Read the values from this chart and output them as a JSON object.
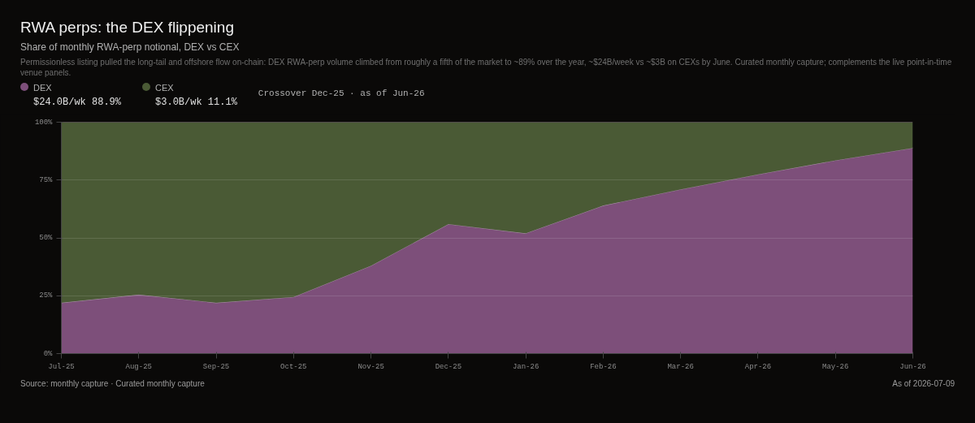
{
  "chart_data": {
    "type": "area",
    "stacked": true,
    "title": "RWA perps: the DEX flippening",
    "subtitle": "Share of monthly RWA-perp notional, DEX vs CEX",
    "categories": [
      "Jul-25",
      "Aug-25",
      "Sep-25",
      "Oct-25",
      "Nov-25",
      "Dec-25",
      "Jan-26",
      "Feb-26",
      "Mar-26",
      "Apr-26",
      "May-26",
      "Jun-26"
    ],
    "series": [
      {
        "name": "DEX",
        "color": "#7d4f7a",
        "values": [
          22,
          25.5,
          22,
          24.5,
          38,
          56,
          52,
          64,
          71,
          77.5,
          83.5,
          88.9
        ]
      },
      {
        "name": "CEX",
        "color": "#4a5a35",
        "values": [
          78,
          74.5,
          78,
          75.5,
          62,
          44,
          48,
          36,
          29,
          22.5,
          16.5,
          11.1
        ]
      }
    ],
    "ylim": [
      0,
      100
    ],
    "yticks": [
      {
        "value": 0,
        "label": "0%"
      },
      {
        "value": 25,
        "label": "25%"
      },
      {
        "value": 50,
        "label": "50%"
      },
      {
        "value": 75,
        "label": "75%"
      },
      {
        "value": 100,
        "label": "100%"
      }
    ],
    "grid": "y",
    "legend": "top left",
    "annotations": [
      "Permissionless listing pulled the long-tail and offshore flow on-chain: DEX RWA-perp volume climbed from roughly a fifth of the market to ~89% over the year, ~$24B/week vs ~$3B on CEXs by June. Curated monthly capture; complements the live point-in-time venue panels.",
      "$24.0B/wk 88.9%",
      "$3.0B/wk 11.1%",
      "Crossover Dec-25 · as of Jun-26",
      "Source: monthly capture · Curated monthly capture",
      "As of 2026-07-09"
    ]
  }
}
